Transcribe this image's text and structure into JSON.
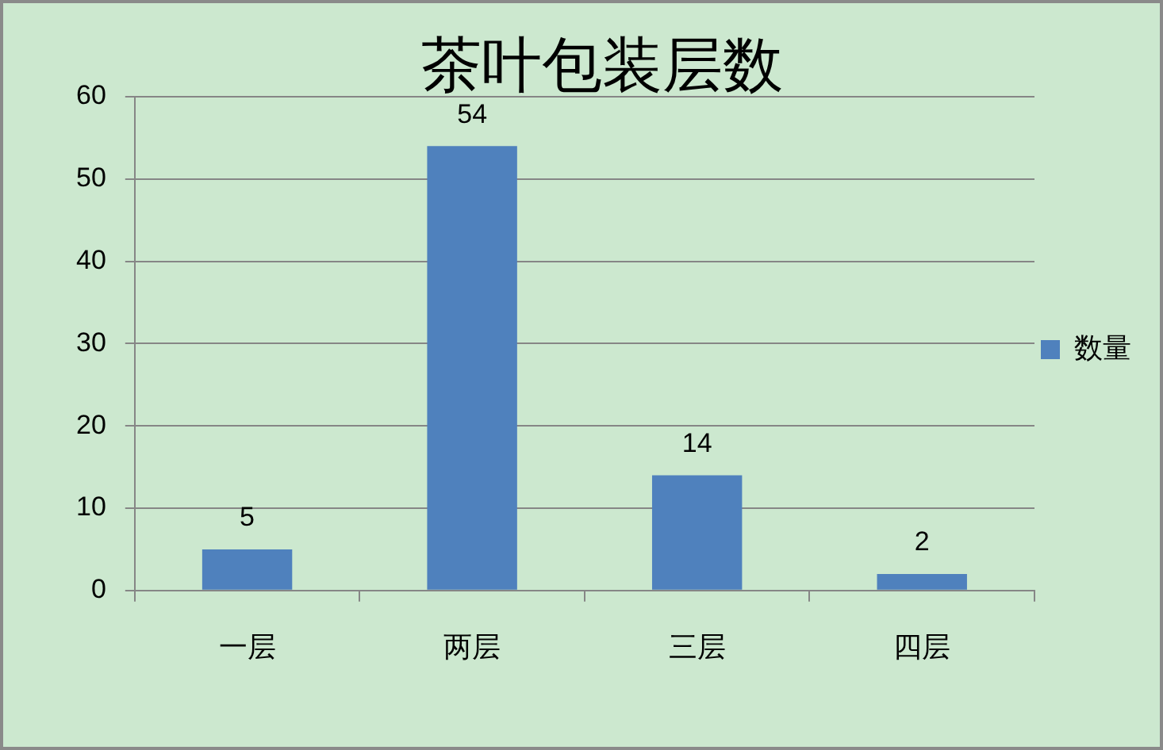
{
  "chart_data": {
    "type": "bar",
    "title": "茶叶包装层数",
    "categories": [
      "一层",
      "两层",
      "三层",
      "四层"
    ],
    "series": [
      {
        "name": "数量",
        "color": "#4f81bd",
        "values": [
          5,
          54,
          14,
          2
        ]
      }
    ],
    "ylim": [
      0,
      60
    ],
    "yticks": [
      0,
      10,
      20,
      30,
      40,
      50,
      60
    ],
    "grid": "y",
    "legend": "right",
    "data_labels": true
  }
}
